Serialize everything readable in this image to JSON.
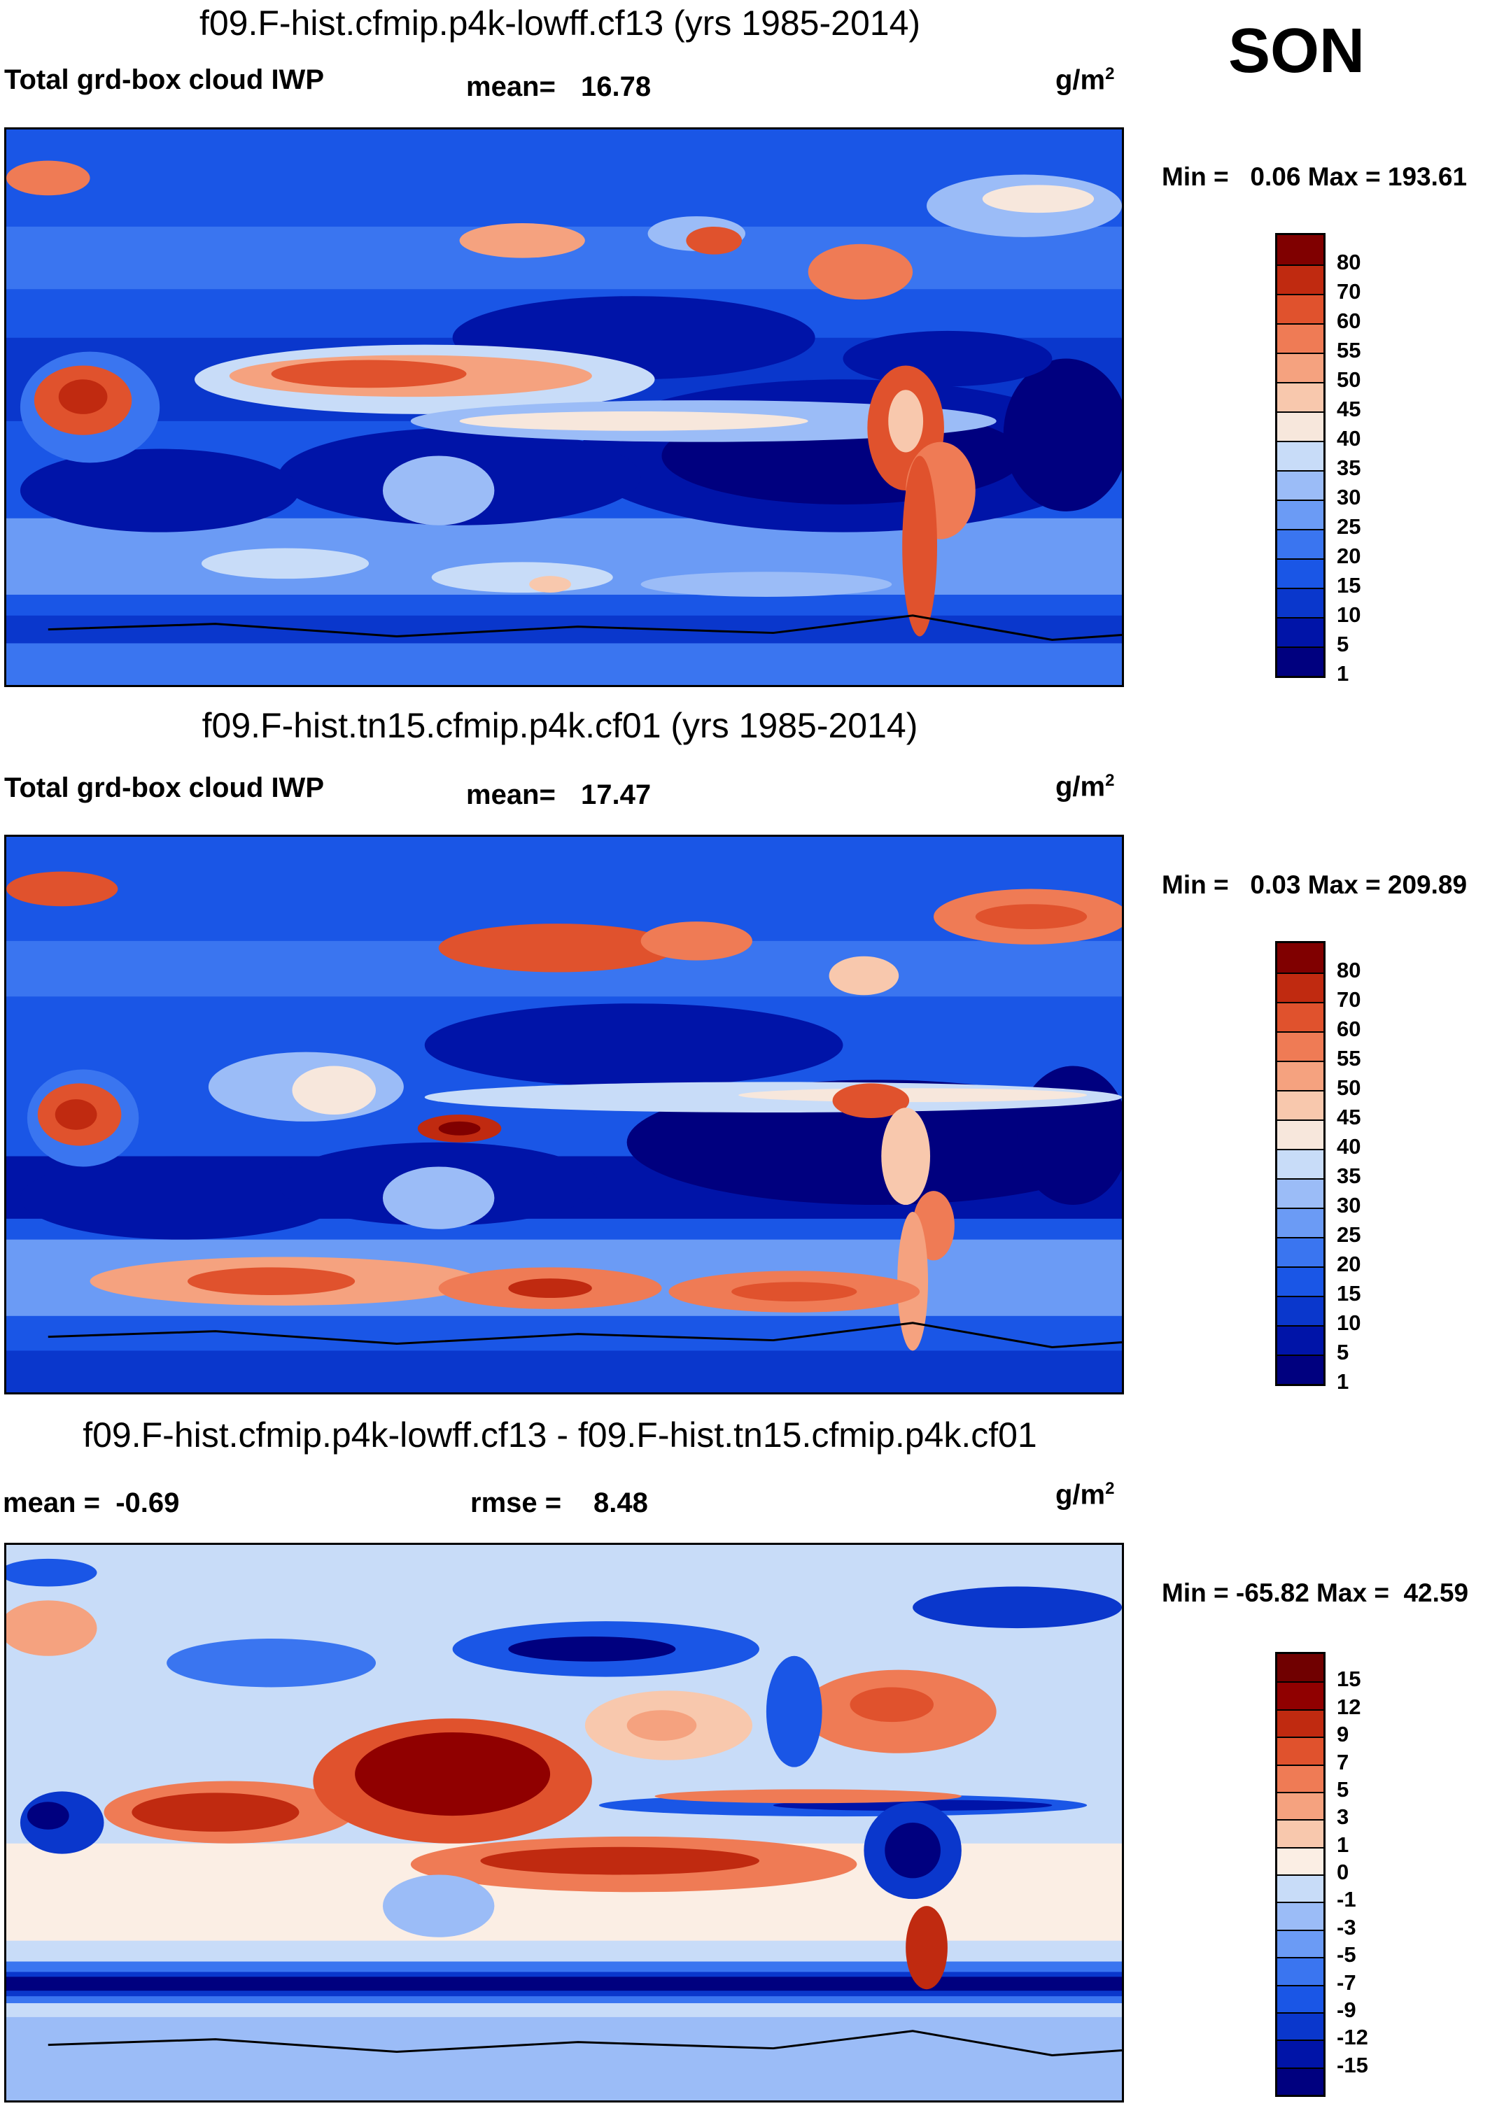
{
  "season": "SON",
  "units_html": "g/m",
  "units_sup": "2",
  "panels": [
    {
      "title": "f09.F-hist.cfmip.p4k-lowff.cf13 (yrs 1985-2014)",
      "left_label": "Total grd-box cloud IWP",
      "stat1_label": "mean=",
      "stat1_value": "16.78",
      "minmax": "Min =   0.06 Max = 193.61",
      "levels": [
        "80",
        "70",
        "60",
        "55",
        "50",
        "45",
        "40",
        "35",
        "30",
        "25",
        "20",
        "15",
        "10",
        "5",
        "1"
      ]
    },
    {
      "title": "f09.F-hist.tn15.cfmip.p4k.cf01 (yrs 1985-2014)",
      "left_label": "Total grd-box cloud IWP",
      "stat1_label": "mean=",
      "stat1_value": "17.47",
      "minmax": "Min =   0.03 Max = 209.89",
      "levels": [
        "80",
        "70",
        "60",
        "55",
        "50",
        "45",
        "40",
        "35",
        "30",
        "25",
        "20",
        "15",
        "10",
        "5",
        "1"
      ]
    },
    {
      "title": "f09.F-hist.cfmip.p4k-lowff.cf13 - f09.F-hist.tn15.cfmip.p4k.cf01",
      "left_label": "mean =  -0.69",
      "stat1_label": "rmse =",
      "stat1_value": "8.48",
      "minmax": "Min = -65.82 Max =  42.59",
      "levels": [
        "15",
        "12",
        "9",
        "7",
        "5",
        "3",
        "1",
        "0",
        "-1",
        "-3",
        "-5",
        "-7",
        "-9",
        "-12",
        "-15"
      ]
    }
  ],
  "chart_data": [
    {
      "type": "heatmap",
      "title": "f09.F-hist.cfmip.p4k-lowff.cf13 (yrs 1985-2014)",
      "variable": "Total grd-box cloud IWP",
      "units": "g/m2",
      "mean": 16.78,
      "min": 0.06,
      "max": 193.61,
      "contour_levels": [
        1,
        5,
        10,
        15,
        20,
        25,
        30,
        35,
        40,
        45,
        50,
        55,
        60,
        70,
        80
      ],
      "colors": [
        "#00007f",
        "#0014a8",
        "#0a37cc",
        "#1a56e6",
        "#3a75f0",
        "#6b9bf5",
        "#9bbcf7",
        "#c8dcf8",
        "#f7e7dc",
        "#f8c8ad",
        "#f5a27f",
        "#ef7b55",
        "#e0522d",
        "#c02a10",
        "#800000"
      ]
    },
    {
      "type": "heatmap",
      "title": "f09.F-hist.tn15.cfmip.p4k.cf01 (yrs 1985-2014)",
      "variable": "Total grd-box cloud IWP",
      "units": "g/m2",
      "mean": 17.47,
      "min": 0.03,
      "max": 209.89,
      "contour_levels": [
        1,
        5,
        10,
        15,
        20,
        25,
        30,
        35,
        40,
        45,
        50,
        55,
        60,
        70,
        80
      ],
      "colors": [
        "#00007f",
        "#0014a8",
        "#0a37cc",
        "#1a56e6",
        "#3a75f0",
        "#6b9bf5",
        "#9bbcf7",
        "#c8dcf8",
        "#f7e7dc",
        "#f8c8ad",
        "#f5a27f",
        "#ef7b55",
        "#e0522d",
        "#c02a10",
        "#800000"
      ]
    },
    {
      "type": "heatmap",
      "title": "f09.F-hist.cfmip.p4k-lowff.cf13 - f09.F-hist.tn15.cfmip.p4k.cf01",
      "units": "g/m2",
      "mean": -0.69,
      "rmse": 8.48,
      "min": -65.82,
      "max": 42.59,
      "contour_levels": [
        -15,
        -12,
        -9,
        -7,
        -5,
        -3,
        -1,
        0,
        1,
        3,
        5,
        7,
        9,
        12,
        15
      ],
      "colors": [
        "#00007f",
        "#0014a8",
        "#0a37cc",
        "#1a56e6",
        "#3a75f0",
        "#6b9bf5",
        "#9bbcf7",
        "#c8dcf8",
        "#fbeee4",
        "#f8c8ad",
        "#f5a27f",
        "#ef7b55",
        "#e0522d",
        "#c02a10",
        "#900000",
        "#700000"
      ]
    }
  ]
}
